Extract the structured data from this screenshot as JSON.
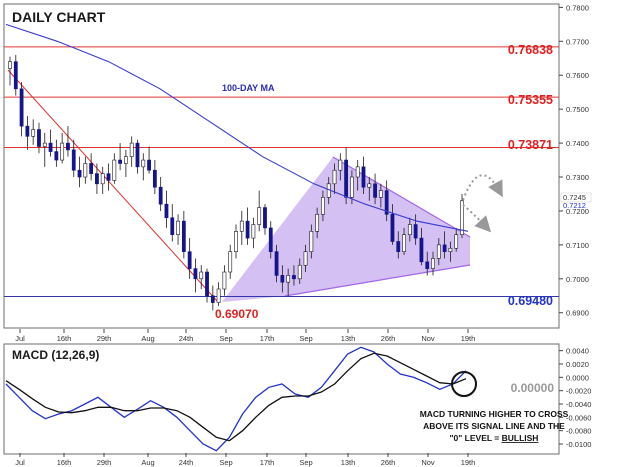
{
  "chart_data": [
    {
      "type": "candlestick",
      "title": "DAILY CHART",
      "y_axis_side": "right",
      "ylim": [
        0.6855,
        0.781
      ],
      "y_ticks": [
        0.69,
        0.7,
        0.71,
        0.72,
        0.73,
        0.74,
        0.75,
        0.76,
        0.77,
        0.78
      ],
      "y_tick_labels": [
        "0.6900",
        "0.7000",
        "0.7100",
        "0.7200",
        "0.7300",
        "0.7400",
        "0.7500",
        "0.7600",
        "0.7700",
        "0.7800"
      ],
      "last_price_labels": [
        "0.7245",
        "0.7212"
      ],
      "x_tick_labels": [
        "Jul",
        "16th",
        "29th",
        "Aug",
        "24th",
        "Sep",
        "17th",
        "Sep",
        "13th",
        "26th",
        "Nov",
        "19th"
      ],
      "horizontal_levels": [
        {
          "label": "0.76838",
          "value": 0.76838,
          "color": "#e03030",
          "label_color": "#e02020"
        },
        {
          "label": "0.75355",
          "value": 0.75355,
          "color": "#e03030",
          "label_color": "#e02020"
        },
        {
          "label": "0.73871",
          "value": 0.73871,
          "color": "#e03030",
          "label_color": "#e02020"
        },
        {
          "label": "0.69480",
          "value": 0.6948,
          "color": "#3333aa",
          "label_color": "#2233cc"
        }
      ],
      "annotations": [
        {
          "text": "100-DAY MA",
          "color": "#2b2bb0"
        },
        {
          "text": "0.69070",
          "color": "#e02020"
        }
      ],
      "ohlc": [
        [
          0.762,
          0.7655,
          0.757,
          0.764
        ],
        [
          0.764,
          0.766,
          0.754,
          0.756
        ],
        [
          0.756,
          0.758,
          0.742,
          0.745
        ],
        [
          0.745,
          0.748,
          0.738,
          0.742
        ],
        [
          0.742,
          0.747,
          0.7395,
          0.744
        ],
        [
          0.744,
          0.746,
          0.737,
          0.739
        ],
        [
          0.739,
          0.743,
          0.733,
          0.74
        ],
        [
          0.74,
          0.744,
          0.736,
          0.7375
        ],
        [
          0.7375,
          0.741,
          0.733,
          0.735
        ],
        [
          0.735,
          0.743,
          0.734,
          0.74
        ],
        [
          0.74,
          0.745,
          0.736,
          0.738
        ],
        [
          0.738,
          0.741,
          0.73,
          0.732
        ],
        [
          0.732,
          0.736,
          0.727,
          0.73
        ],
        [
          0.73,
          0.736,
          0.728,
          0.734
        ],
        [
          0.734,
          0.737,
          0.729,
          0.731
        ],
        [
          0.731,
          0.734,
          0.725,
          0.728
        ],
        [
          0.728,
          0.733,
          0.725,
          0.731
        ],
        [
          0.731,
          0.734,
          0.726,
          0.729
        ],
        [
          0.729,
          0.737,
          0.728,
          0.735
        ],
        [
          0.735,
          0.74,
          0.732,
          0.734
        ],
        [
          0.734,
          0.738,
          0.73,
          0.736
        ],
        [
          0.736,
          0.742,
          0.733,
          0.74
        ],
        [
          0.74,
          0.741,
          0.731,
          0.733
        ],
        [
          0.733,
          0.737,
          0.729,
          0.735
        ],
        [
          0.735,
          0.739,
          0.731,
          0.732
        ],
        [
          0.732,
          0.735,
          0.725,
          0.727
        ],
        [
          0.727,
          0.73,
          0.72,
          0.722
        ],
        [
          0.722,
          0.726,
          0.715,
          0.718
        ],
        [
          0.718,
          0.722,
          0.711,
          0.713
        ],
        [
          0.713,
          0.719,
          0.71,
          0.717
        ],
        [
          0.717,
          0.72,
          0.706,
          0.708
        ],
        [
          0.708,
          0.712,
          0.7,
          0.703
        ],
        [
          0.703,
          0.706,
          0.696,
          0.7
        ],
        [
          0.7,
          0.704,
          0.697,
          0.702
        ],
        [
          0.702,
          0.703,
          0.693,
          0.695
        ],
        [
          0.695,
          0.698,
          0.6907,
          0.693
        ],
        [
          0.693,
          0.699,
          0.692,
          0.697
        ],
        [
          0.697,
          0.704,
          0.695,
          0.702
        ],
        [
          0.702,
          0.71,
          0.7,
          0.708
        ],
        [
          0.708,
          0.716,
          0.706,
          0.714
        ],
        [
          0.714,
          0.72,
          0.71,
          0.717
        ],
        [
          0.717,
          0.721,
          0.71,
          0.712
        ],
        [
          0.712,
          0.718,
          0.709,
          0.716
        ],
        [
          0.716,
          0.726,
          0.714,
          0.721
        ],
        [
          0.721,
          0.722,
          0.713,
          0.715
        ],
        [
          0.715,
          0.717,
          0.706,
          0.708
        ],
        [
          0.708,
          0.71,
          0.699,
          0.701
        ],
        [
          0.701,
          0.704,
          0.696,
          0.699
        ],
        [
          0.699,
          0.703,
          0.695,
          0.701
        ],
        [
          0.701,
          0.704,
          0.698,
          0.7
        ],
        [
          0.7,
          0.706,
          0.6985,
          0.704
        ],
        [
          0.704,
          0.71,
          0.702,
          0.708
        ],
        [
          0.708,
          0.716,
          0.706,
          0.714
        ],
        [
          0.714,
          0.721,
          0.712,
          0.719
        ],
        [
          0.719,
          0.726,
          0.717,
          0.724
        ],
        [
          0.724,
          0.73,
          0.722,
          0.728
        ],
        [
          0.728,
          0.734,
          0.725,
          0.732
        ],
        [
          0.732,
          0.737,
          0.729,
          0.735
        ],
        [
          0.735,
          0.7387,
          0.722,
          0.724
        ],
        [
          0.724,
          0.732,
          0.722,
          0.73
        ],
        [
          0.73,
          0.735,
          0.726,
          0.733
        ],
        [
          0.733,
          0.736,
          0.725,
          0.727
        ],
        [
          0.727,
          0.73,
          0.723,
          0.728
        ],
        [
          0.728,
          0.731,
          0.722,
          0.724
        ],
        [
          0.724,
          0.728,
          0.721,
          0.726
        ],
        [
          0.726,
          0.729,
          0.717,
          0.719
        ],
        [
          0.719,
          0.722,
          0.71,
          0.711
        ],
        [
          0.711,
          0.714,
          0.706,
          0.708
        ],
        [
          0.708,
          0.715,
          0.707,
          0.713
        ],
        [
          0.713,
          0.718,
          0.711,
          0.716
        ],
        [
          0.716,
          0.719,
          0.71,
          0.712
        ],
        [
          0.712,
          0.715,
          0.704,
          0.705
        ],
        [
          0.705,
          0.708,
          0.701,
          0.703
        ],
        [
          0.703,
          0.708,
          0.701,
          0.706
        ],
        [
          0.706,
          0.712,
          0.704,
          0.71
        ],
        [
          0.71,
          0.714,
          0.706,
          0.708
        ],
        [
          0.708,
          0.711,
          0.705,
          0.709
        ],
        [
          0.709,
          0.715,
          0.708,
          0.713
        ],
        [
          0.713,
          0.725,
          0.712,
          0.723
        ]
      ],
      "ma_100_day": [
        0.775,
        0.77,
        0.764,
        0.756,
        0.746,
        0.736,
        0.728,
        0.722,
        0.717,
        0.714
      ]
    },
    {
      "type": "line",
      "title": "MACD (12,26,9)",
      "y_axis_side": "right",
      "ylim": [
        -0.0115,
        0.005
      ],
      "y_ticks": [
        0.004,
        0.002,
        0.0,
        -0.002,
        -0.004,
        -0.006,
        -0.008,
        -0.01
      ],
      "y_tick_labels": [
        "0.0040",
        "0.0020",
        "0.0000",
        "-0.0020",
        "-0.0040",
        "-0.0060",
        "-0.0080",
        "-0.0100"
      ],
      "zero_line_label": "0.00000",
      "x_tick_labels": [
        "Jul",
        "16th",
        "29th",
        "Aug",
        "24th",
        "Sep",
        "17th",
        "Sep",
        "13th",
        "26th",
        "Nov",
        "19th"
      ],
      "series": [
        {
          "color": "#2233cc",
          "values": [
            -0.001,
            -0.003,
            -0.005,
            -0.0062,
            -0.0055,
            -0.005,
            -0.004,
            -0.003,
            -0.0045,
            -0.006,
            -0.0048,
            -0.0035,
            -0.0045,
            -0.006,
            -0.008,
            -0.01,
            -0.011,
            -0.009,
            -0.0055,
            -0.003,
            -0.0015,
            -0.001,
            -0.0025,
            -0.003,
            -0.0015,
            0.001,
            0.0035,
            0.0045,
            0.0038,
            0.002,
            0.0005,
            0.0,
            -0.0008,
            -0.0018,
            -0.001,
            0.001
          ]
        },
        {
          "color": "#111111",
          "values": [
            -0.0005,
            -0.0018,
            -0.0032,
            -0.0045,
            -0.0052,
            -0.0053,
            -0.005,
            -0.0045,
            -0.0045,
            -0.005,
            -0.005,
            -0.0046,
            -0.0046,
            -0.005,
            -0.006,
            -0.0075,
            -0.009,
            -0.0095,
            -0.008,
            -0.006,
            -0.0042,
            -0.003,
            -0.0028,
            -0.0028,
            -0.0022,
            -0.001,
            0.001,
            0.0028,
            0.0036,
            0.0032,
            0.0022,
            0.0012,
            0.0002,
            -0.0008,
            -0.001,
            -0.0002
          ]
        }
      ],
      "annotations": [
        {
          "text": "MACD TURNING HIGHER TO CROSS"
        },
        {
          "text": "ABOVE ITS SIGNAL LINE AND THE"
        },
        {
          "text": "\"0\" LEVEL = "
        },
        {
          "text": "BULLISH"
        }
      ]
    }
  ]
}
